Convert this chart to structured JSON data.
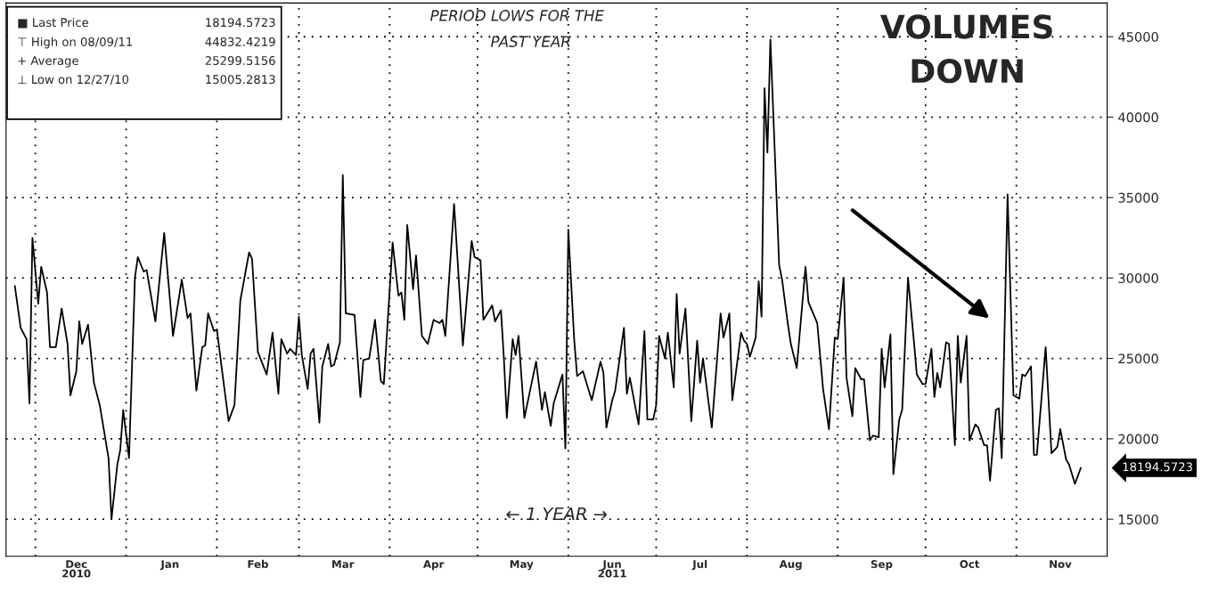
{
  "chart_data": {
    "type": "line",
    "x": [
      "2010-11-24",
      "2010-11-26",
      "2010-11-28",
      "2010-11-29",
      "2010-11-30",
      "2010-12-02",
      "2010-12-03",
      "2010-12-05",
      "2010-12-06",
      "2010-12-08",
      "2010-12-10",
      "2010-12-12",
      "2010-12-13",
      "2010-12-15",
      "2010-12-16",
      "2010-12-17",
      "2010-12-19",
      "2010-12-21",
      "2010-12-23",
      "2010-12-26",
      "2010-12-27",
      "2010-12-29",
      "2010-12-30",
      "2010-12-31",
      "2011-01-02",
      "2011-01-04",
      "2011-01-05",
      "2011-01-07",
      "2011-01-08",
      "2011-01-11",
      "2011-01-14",
      "2011-01-16",
      "2011-01-17",
      "2011-01-20",
      "2011-01-22",
      "2011-01-23",
      "2011-01-25",
      "2011-01-27",
      "2011-01-28",
      "2011-01-29",
      "2011-01-31",
      "2011-02-01",
      "2011-02-03",
      "2011-02-05",
      "2011-02-07",
      "2011-02-09",
      "2011-02-12",
      "2011-02-13",
      "2011-02-15",
      "2011-02-18",
      "2011-02-20",
      "2011-02-22",
      "2011-02-23",
      "2011-02-25",
      "2011-02-26",
      "2011-02-28",
      "2011-03-01",
      "2011-03-02",
      "2011-03-04",
      "2011-03-05",
      "2011-03-06",
      "2011-03-08",
      "2011-03-09",
      "2011-03-11",
      "2011-03-12",
      "2011-03-13",
      "2011-03-15",
      "2011-03-16",
      "2011-03-17",
      "2011-03-20",
      "2011-03-22",
      "2011-03-23",
      "2011-03-25",
      "2011-03-27",
      "2011-03-29",
      "2011-03-30",
      "2011-04-02",
      "2011-04-04",
      "2011-04-05",
      "2011-04-06",
      "2011-04-07",
      "2011-04-09",
      "2011-04-10",
      "2011-04-12",
      "2011-04-14",
      "2011-04-16",
      "2011-04-18",
      "2011-04-19",
      "2011-04-20",
      "2011-04-23",
      "2011-04-26",
      "2011-04-29",
      "2011-04-30",
      "2011-05-02",
      "2011-05-03",
      "2011-05-06",
      "2011-05-07",
      "2011-05-09",
      "2011-05-10",
      "2011-05-11",
      "2011-05-13",
      "2011-05-14",
      "2011-05-15",
      "2011-05-17",
      "2011-05-21",
      "2011-05-23",
      "2011-05-24",
      "2011-05-26",
      "2011-05-27",
      "2011-05-30",
      "2011-05-31",
      "2011-06-01",
      "2011-06-03",
      "2011-06-04",
      "2011-06-06",
      "2011-06-09",
      "2011-06-12",
      "2011-06-13",
      "2011-06-14",
      "2011-06-16",
      "2011-06-17",
      "2011-06-20",
      "2011-06-21",
      "2011-06-22",
      "2011-06-25",
      "2011-06-27",
      "2011-06-28",
      "2011-06-30",
      "2011-07-01",
      "2011-07-02",
      "2011-07-04",
      "2011-07-05",
      "2011-07-07",
      "2011-07-08",
      "2011-07-09",
      "2011-07-11",
      "2011-07-13",
      "2011-07-15",
      "2011-07-16",
      "2011-07-17",
      "2011-07-19",
      "2011-07-20",
      "2011-07-23",
      "2011-07-24",
      "2011-07-26",
      "2011-07-27",
      "2011-07-30",
      "2011-07-31",
      "2011-08-01",
      "2011-08-02",
      "2011-08-04",
      "2011-08-05",
      "2011-08-06",
      "2011-08-07",
      "2011-08-08",
      "2011-08-09",
      "2011-08-10",
      "2011-08-12",
      "2011-08-13",
      "2011-08-15",
      "2011-08-16",
      "2011-08-18",
      "2011-08-21",
      "2011-08-22",
      "2011-08-25",
      "2011-08-27",
      "2011-08-29",
      "2011-08-31",
      "2011-09-01",
      "2011-09-03",
      "2011-09-04",
      "2011-09-06",
      "2011-09-07",
      "2011-09-09",
      "2011-09-10",
      "2011-09-12",
      "2011-09-13",
      "2011-09-15",
      "2011-09-16",
      "2011-09-17",
      "2011-09-19",
      "2011-09-20",
      "2011-09-22",
      "2011-09-23",
      "2011-09-25",
      "2011-09-27",
      "2011-09-28",
      "2011-09-30",
      "2011-10-01",
      "2011-10-03",
      "2011-10-04",
      "2011-10-05",
      "2011-10-06",
      "2011-10-08",
      "2011-10-09",
      "2011-10-11",
      "2011-10-12",
      "2011-10-13",
      "2011-10-15",
      "2011-10-16",
      "2011-10-18",
      "2011-10-19",
      "2011-10-21",
      "2011-10-22",
      "2011-10-23",
      "2011-10-25",
      "2011-10-26",
      "2011-10-27",
      "2011-10-29",
      "2011-10-31",
      "2011-11-02",
      "2011-11-03",
      "2011-11-04",
      "2011-11-06",
      "2011-11-07",
      "2011-11-08",
      "2011-11-11",
      "2011-11-13",
      "2011-11-15",
      "2011-11-16",
      "2011-11-18",
      "2011-11-19",
      "2011-11-21",
      "2011-11-23"
    ],
    "series": [
      {
        "color": "#000000",
        "values": [
          29500,
          26900,
          26200,
          22200,
          32500,
          28400,
          30700,
          29100,
          25700,
          25700,
          28100,
          25900,
          22700,
          24200,
          27300,
          25900,
          27100,
          23500,
          22100,
          18800,
          15005.2813,
          18400,
          19300,
          21800,
          18800,
          30000,
          31300,
          30400,
          30500,
          27300,
          32800,
          28600,
          26400,
          29900,
          27500,
          27800,
          23000,
          25700,
          25800,
          27800,
          26700,
          26800,
          23900,
          21100,
          22100,
          28600,
          31600,
          31200,
          25400,
          24000,
          26600,
          22800,
          26200,
          25300,
          25600,
          25200,
          27600,
          25200,
          23100,
          25300,
          25600,
          21000,
          24500,
          25900,
          24500,
          24600,
          26000,
          36400,
          27800,
          27700,
          22600,
          24900,
          25000,
          27400,
          23600,
          23400,
          32200,
          28900,
          29100,
          27400,
          33300,
          29300,
          31400,
          26400,
          25900,
          27400,
          27200,
          27400,
          26400,
          34600,
          25800,
          32300,
          31300,
          31100,
          27400,
          28300,
          27300,
          28000,
          25000,
          21300,
          26200,
          25200,
          26400,
          21300,
          24800,
          21800,
          22900,
          20800,
          22200,
          24000,
          19400,
          33000,
          26200,
          23900,
          24200,
          22400,
          24800,
          24100,
          20700,
          22400,
          23000,
          26900,
          22800,
          23800,
          20900,
          26700,
          21200,
          21200,
          22100,
          26400,
          25000,
          26600,
          23200,
          29000,
          25300,
          28100,
          21100,
          26100,
          23500,
          25000,
          22100,
          20700,
          27800,
          26300,
          27800,
          22400,
          26600,
          26100,
          25900,
          25100,
          26300,
          29800,
          27600,
          41800,
          37800,
          44832.4219,
          40200,
          30800,
          29900,
          27100,
          25900,
          24400,
          30700,
          28500,
          27200,
          23100,
          20600,
          26300,
          26200,
          30000,
          23800,
          21400,
          24400,
          23700,
          23700,
          19900,
          20200,
          20100,
          25600,
          23200,
          26500,
          17800,
          21200,
          21800,
          30000,
          26100,
          24000,
          23400,
          23400,
          25600,
          22600,
          24100,
          23200,
          26000,
          25900,
          19600,
          26400,
          23500,
          26400,
          19900,
          20900,
          20700,
          19600,
          19600,
          17400,
          21800,
          21900,
          18800,
          35200,
          22700,
          22500,
          24000,
          23900,
          24500,
          19000,
          19000,
          25700,
          19100,
          19500,
          20600,
          18700,
          18400,
          17200,
          18194.5723
        ]
      }
    ],
    "xlim": [
      "2010-11-21",
      "2011-12-02"
    ],
    "xticks": [
      {
        "value": "2010-12-01",
        "label": null
      },
      {
        "value": "2011-01-01",
        "label": null
      },
      {
        "value": "2011-02-01",
        "label": null
      },
      {
        "value": "2011-03-01",
        "label": null
      },
      {
        "value": "2011-04-01",
        "label": null
      },
      {
        "value": "2011-05-01",
        "label": null
      },
      {
        "value": "2011-06-01",
        "label": null
      },
      {
        "value": "2011-07-01",
        "label": null
      },
      {
        "value": "2011-08-01",
        "label": null
      },
      {
        "value": "2011-09-01",
        "label": null
      },
      {
        "value": "2011-10-01",
        "label": null
      },
      {
        "value": "2011-11-01",
        "label": null
      },
      {
        "value": "2010-12-15",
        "label": "Dec\n2010"
      },
      {
        "value": "2011-01-16",
        "label": "Jan"
      },
      {
        "value": "2011-02-15",
        "label": "Feb"
      },
      {
        "value": "2011-03-16",
        "label": "Mar"
      },
      {
        "value": "2011-04-16",
        "label": "Apr"
      },
      {
        "value": "2011-05-16",
        "label": "May"
      },
      {
        "value": "2011-06-16",
        "label": "Jun\n2011"
      },
      {
        "value": "2011-07-16",
        "label": "Jul"
      },
      {
        "value": "2011-08-16",
        "label": "Aug"
      },
      {
        "value": "2011-09-16",
        "label": "Sep"
      },
      {
        "value": "2011-10-16",
        "label": "Oct"
      },
      {
        "value": "2011-11-16",
        "label": "Nov"
      }
    ],
    "ylim": [
      12700,
      47100
    ],
    "yticks": [
      15000,
      20000,
      25000,
      30000,
      35000,
      40000,
      45000
    ],
    "grid": true,
    "annotations": [
      "■ Last Price",
      "18194.5723",
      "⊤ High on 08/09/11",
      "44832.4219",
      "+ Average",
      "25299.5156",
      "⊥ Low on 12/27/10",
      "15005.2813",
      "PERIOD LOWS FOR THE",
      "PAST YEAR",
      "VOLUMES",
      "DOWN",
      "← 1 YEAR →",
      "18194.5723"
    ]
  }
}
